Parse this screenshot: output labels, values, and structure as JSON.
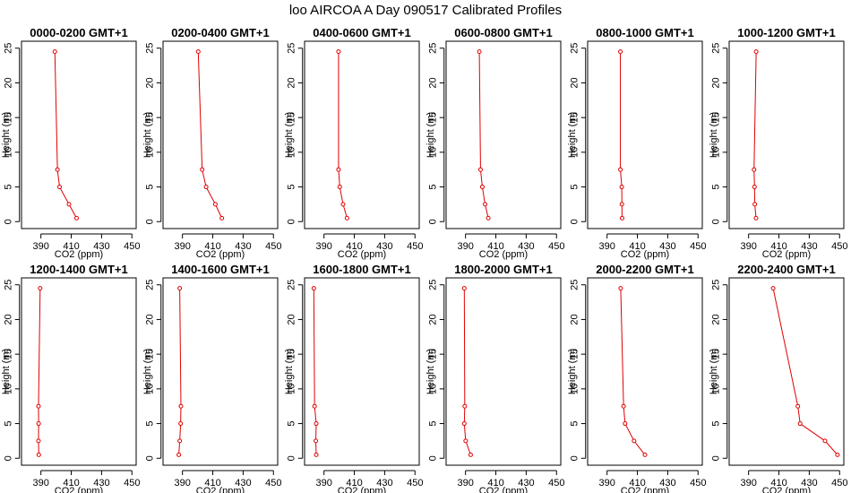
{
  "title": "loo AIRCOA A  Day 090517  Calibrated Profiles",
  "colors": {
    "series": "#e00000",
    "axis": "#000000",
    "background": "#ffffff"
  },
  "chart_data": [
    {
      "type": "line",
      "title": "0000-0200 GMT+1",
      "xlabel": "CO2 (ppm)",
      "ylabel": "Height (m)",
      "xlim": [
        380,
        450
      ],
      "ylim": [
        0,
        25
      ],
      "xticks": [
        390,
        410,
        430,
        450
      ],
      "yticks": [
        0,
        5,
        10,
        15,
        20,
        25
      ],
      "grid": false,
      "x": [
        413.5,
        408.5,
        402.3,
        400.9,
        399.2
      ],
      "y": [
        0.5,
        2.5,
        5.0,
        7.5,
        24.5
      ]
    },
    {
      "type": "line",
      "title": "0200-0400 GMT+1",
      "xlabel": "CO2 (ppm)",
      "ylabel": "Height (m)",
      "xlim": [
        380,
        450
      ],
      "ylim": [
        0,
        25
      ],
      "xticks": [
        390,
        410,
        430,
        450
      ],
      "yticks": [
        0,
        5,
        10,
        15,
        20,
        25
      ],
      "grid": false,
      "x": [
        416.0,
        411.7,
        405.6,
        403.0,
        400.4
      ],
      "y": [
        0.5,
        2.5,
        5.0,
        7.5,
        24.5
      ]
    },
    {
      "type": "line",
      "title": "0400-0600 GMT+1",
      "xlabel": "CO2 (ppm)",
      "ylabel": "Height (m)",
      "xlim": [
        380,
        450
      ],
      "ylim": [
        0,
        25
      ],
      "xticks": [
        390,
        410,
        430,
        450
      ],
      "yticks": [
        0,
        5,
        10,
        15,
        20,
        25
      ],
      "grid": false,
      "x": [
        405.2,
        402.6,
        400.4,
        399.6,
        399.6
      ],
      "y": [
        0.5,
        2.5,
        5.0,
        7.5,
        24.5
      ]
    },
    {
      "type": "line",
      "title": "0600-0800 GMT+1",
      "xlabel": "CO2 (ppm)",
      "ylabel": "Height (m)",
      "xlim": [
        380,
        450
      ],
      "ylim": [
        0,
        25
      ],
      "xticks": [
        390,
        410,
        430,
        450
      ],
      "yticks": [
        0,
        5,
        10,
        15,
        20,
        25
      ],
      "grid": false,
      "x": [
        405.0,
        402.9,
        401.1,
        399.9,
        399.1
      ],
      "y": [
        0.5,
        2.5,
        5.0,
        7.5,
        24.5
      ]
    },
    {
      "type": "line",
      "title": "0800-1000 GMT+1",
      "xlabel": "CO2 (ppm)",
      "ylabel": "Height (m)",
      "xlim": [
        380,
        450
      ],
      "ylim": [
        0,
        25
      ],
      "xticks": [
        390,
        410,
        430,
        450
      ],
      "yticks": [
        0,
        5,
        10,
        15,
        20,
        25
      ],
      "grid": false,
      "x": [
        399.9,
        399.8,
        399.7,
        398.8,
        398.8
      ],
      "y": [
        0.5,
        2.5,
        5.0,
        7.5,
        24.5
      ]
    },
    {
      "type": "line",
      "title": "1000-1200 GMT+1",
      "xlabel": "CO2 (ppm)",
      "ylabel": "Height (m)",
      "xlim": [
        380,
        450
      ],
      "ylim": [
        0,
        25
      ],
      "xticks": [
        390,
        410,
        430,
        450
      ],
      "yticks": [
        0,
        5,
        10,
        15,
        20,
        25
      ],
      "grid": false,
      "x": [
        394.9,
        394.1,
        393.9,
        393.6,
        395.0
      ],
      "y": [
        0.5,
        2.5,
        5.0,
        7.5,
        24.5
      ]
    },
    {
      "type": "line",
      "title": "1200-1400 GMT+1",
      "xlabel": "CO2 (ppm)",
      "ylabel": "Height (m)",
      "xlim": [
        380,
        450
      ],
      "ylim": [
        0,
        25
      ],
      "xticks": [
        390,
        410,
        430,
        450
      ],
      "yticks": [
        0,
        5,
        10,
        15,
        20,
        25
      ],
      "grid": false,
      "x": [
        388.6,
        388.4,
        388.5,
        388.4,
        389.5
      ],
      "y": [
        0.5,
        2.5,
        5.0,
        7.5,
        24.5
      ]
    },
    {
      "type": "line",
      "title": "1400-1600 GMT+1",
      "xlabel": "CO2 (ppm)",
      "ylabel": "Height (m)",
      "xlim": [
        380,
        450
      ],
      "ylim": [
        0,
        25
      ],
      "xticks": [
        390,
        410,
        430,
        450
      ],
      "yticks": [
        0,
        5,
        10,
        15,
        20,
        25
      ],
      "grid": false,
      "x": [
        387.6,
        388.2,
        388.8,
        389.0,
        388.2
      ],
      "y": [
        0.5,
        2.5,
        5.0,
        7.5,
        24.5
      ]
    },
    {
      "type": "line",
      "title": "1600-1800 GMT+1",
      "xlabel": "CO2 (ppm)",
      "ylabel": "Height (m)",
      "xlim": [
        380,
        450
      ],
      "ylim": [
        0,
        25
      ],
      "xticks": [
        390,
        410,
        430,
        450
      ],
      "yticks": [
        0,
        5,
        10,
        15,
        20,
        25
      ],
      "grid": false,
      "x": [
        384.9,
        384.6,
        384.9,
        383.8,
        383.3
      ],
      "y": [
        0.5,
        2.5,
        5.0,
        7.5,
        24.5
      ]
    },
    {
      "type": "line",
      "title": "1800-2000 GMT+1",
      "xlabel": "CO2 (ppm)",
      "ylabel": "Height (m)",
      "xlim": [
        380,
        450
      ],
      "ylim": [
        0,
        25
      ],
      "xticks": [
        390,
        410,
        430,
        450
      ],
      "yticks": [
        0,
        5,
        10,
        15,
        20,
        25
      ],
      "grid": false,
      "x": [
        393.4,
        390.1,
        389.2,
        389.5,
        389.2
      ],
      "y": [
        0.5,
        2.5,
        5.0,
        7.5,
        24.5
      ]
    },
    {
      "type": "line",
      "title": "2000-2200 GMT+1",
      "xlabel": "CO2 (ppm)",
      "ylabel": "Height (m)",
      "xlim": [
        380,
        450
      ],
      "ylim": [
        0,
        25
      ],
      "xticks": [
        390,
        410,
        430,
        450
      ],
      "yticks": [
        0,
        5,
        10,
        15,
        20,
        25
      ],
      "grid": false,
      "x": [
        415.0,
        407.8,
        401.9,
        400.9,
        399.0
      ],
      "y": [
        0.5,
        2.5,
        5.0,
        7.5,
        24.5
      ]
    },
    {
      "type": "line",
      "title": "2200-2400 GMT+1",
      "xlabel": "CO2 (ppm)",
      "ylabel": "Height (m)",
      "xlim": [
        380,
        450
      ],
      "ylim": [
        0,
        25
      ],
      "xticks": [
        390,
        410,
        430,
        450
      ],
      "yticks": [
        0,
        5,
        10,
        15,
        20,
        25
      ],
      "grid": false,
      "x": [
        448.6,
        440.4,
        424.0,
        422.5,
        406.2
      ],
      "y": [
        0.5,
        2.5,
        5.0,
        7.5,
        24.5
      ]
    }
  ]
}
